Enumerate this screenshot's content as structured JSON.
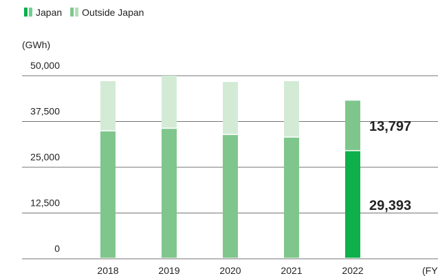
{
  "chart_data": {
    "type": "stacked_bar",
    "y_axis_label": "(GWh)",
    "x_axis_label": "(FY)",
    "categories": [
      "2018",
      "2019",
      "2020",
      "2021",
      "2022"
    ],
    "series": [
      {
        "name": "Japan",
        "color": "#0db04b",
        "colors": [
          "#7fc68c",
          "#7fc68c",
          "#7fc68c",
          "#7fc68c",
          "#0db04b"
        ],
        "values": [
          34800,
          35500,
          33800,
          33100,
          29393
        ],
        "value_labels": [
          null,
          null,
          null,
          null,
          "29,393"
        ]
      },
      {
        "name": "Outside Japan",
        "color": "#7fc68c",
        "colors": [
          "#d3ebd5",
          "#d3ebd5",
          "#d3ebd5",
          "#d3ebd5",
          "#7fc68c"
        ],
        "values": [
          13700,
          14500,
          14500,
          15400,
          13797
        ],
        "value_labels": [
          null,
          null,
          null,
          null,
          "13,797"
        ]
      }
    ],
    "ylim": [
      0,
      50000
    ],
    "yticks": [
      0,
      {
        "value": 12500,
        "label": "12,500"
      },
      {
        "value": 25000,
        "label": "25,000"
      },
      {
        "value": 37500,
        "label": "37,500"
      },
      {
        "value": 50000,
        "label": "50,000"
      }
    ],
    "grid": true,
    "legend": "top-left"
  }
}
